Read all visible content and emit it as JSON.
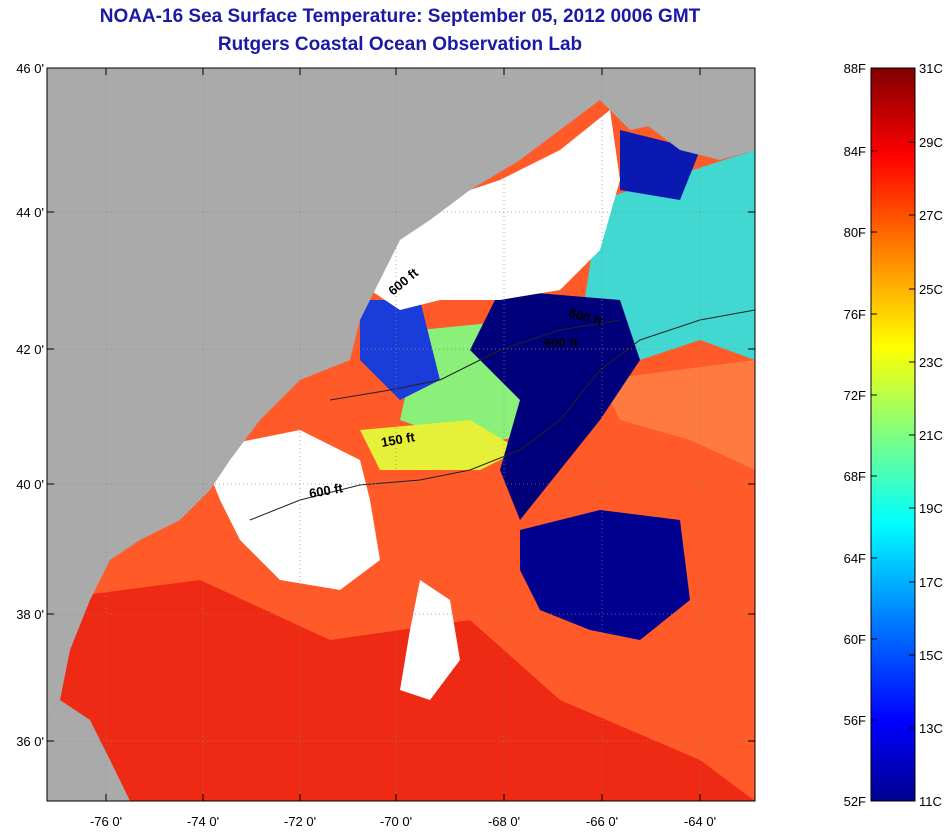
{
  "title": "NOAA-16 Sea Surface Temperature:  September 05, 2012 0006 GMT",
  "subtitle": "Rutgers Coastal Ocean Observation Lab",
  "map": {
    "lon_labels": [
      "-76 0'",
      "-74 0'",
      "-72 0'",
      "-70 0'",
      "-68 0'",
      "-66 0'",
      "-64 0'"
    ],
    "lat_labels": [
      "46 0'",
      "44 0'",
      "42 0'",
      "40 0'",
      "38 0'",
      "36 0'"
    ],
    "contour_labels": [
      "600 ft",
      "600 ft",
      "600 ft",
      "150 ft",
      "600 ft"
    ]
  },
  "colorbar": {
    "fahrenheit": [
      "88F",
      "84F",
      "80F",
      "76F",
      "72F",
      "68F",
      "64F",
      "60F",
      "56F",
      "52F"
    ],
    "celsius": [
      "31C",
      "29C",
      "27C",
      "25C",
      "23C",
      "21C",
      "19C",
      "17C",
      "15C",
      "13C",
      "11C"
    ]
  },
  "colors": {
    "land": "#aaaaaa",
    "cloud": "#ffffff",
    "title": "#1a1aa6"
  }
}
